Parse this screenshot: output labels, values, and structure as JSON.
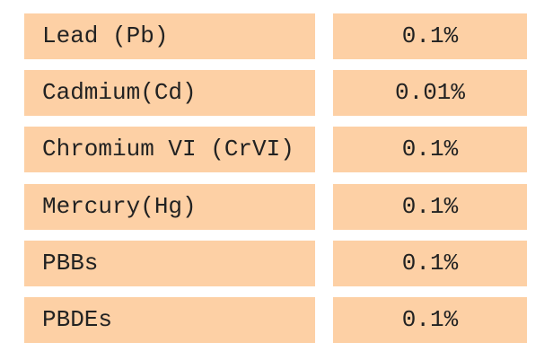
{
  "table": {
    "rows": [
      [
        "Lead (Pb)",
        "0.1%"
      ],
      [
        "Cadmium(Cd)",
        "0.01%"
      ],
      [
        "Chromium VI (CrVI)",
        "0.1%"
      ],
      [
        "Mercury(Hg)",
        "0.1%"
      ],
      [
        "PBBs",
        "0.1%"
      ],
      [
        "PBDEs",
        "0.1%"
      ]
    ]
  }
}
